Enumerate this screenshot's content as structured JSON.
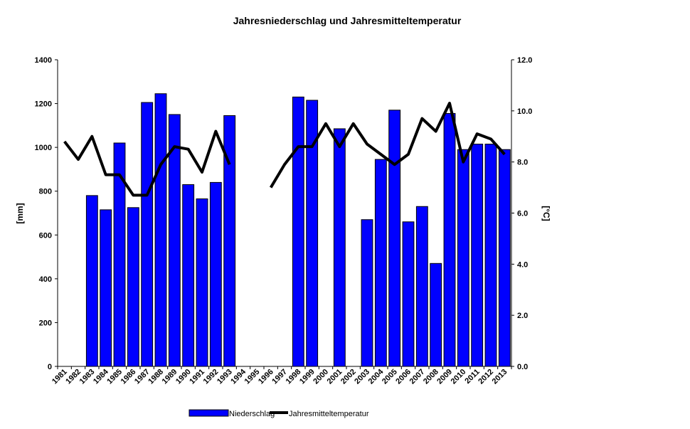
{
  "colors": {
    "bar": "#0000ff",
    "bar_stroke": "#000000",
    "line": "#000000"
  },
  "chart_data": {
    "type": "bar",
    "title": "Jahresniederschlag und Jahresmitteltemperatur",
    "ylabel": "[mm]",
    "y2label": "[°C]",
    "ylim": [
      0,
      1400
    ],
    "y2lim": [
      0,
      12
    ],
    "yticks": [
      "0",
      "200",
      "400",
      "600",
      "800",
      "1000",
      "1200",
      "1400"
    ],
    "y2ticks": [
      "0.0",
      "2.0",
      "4.0",
      "6.0",
      "8.0",
      "10.0",
      "12.0"
    ],
    "grid": false,
    "legend_position": "bottom",
    "categories": [
      "1981",
      "1982",
      "1983",
      "1984",
      "1985",
      "1986",
      "1987",
      "1988",
      "1989",
      "1990",
      "1991",
      "1992",
      "1993",
      "1994",
      "1995",
      "1996",
      "1997",
      "1998",
      "1999",
      "2000",
      "2001",
      "2002",
      "2003",
      "2004",
      "2005",
      "2006",
      "2007",
      "2008",
      "2009",
      "2010",
      "2011",
      "2012",
      "2013"
    ],
    "series": [
      {
        "name": "Niederschlag",
        "type": "bar",
        "axis": "left",
        "values": [
          null,
          null,
          780,
          715,
          1020,
          725,
          1205,
          1245,
          1150,
          830,
          765,
          840,
          1145,
          null,
          null,
          null,
          null,
          1230,
          1215,
          null,
          1085,
          null,
          670,
          945,
          1170,
          660,
          730,
          470,
          1155,
          990,
          1015,
          1015,
          990
        ]
      },
      {
        "name": "Jahresmitteltemperatur",
        "type": "line",
        "axis": "right",
        "values": [
          8.8,
          8.1,
          9.0,
          7.5,
          7.5,
          6.7,
          6.7,
          7.9,
          8.6,
          8.5,
          7.6,
          9.2,
          7.9,
          null,
          null,
          7.0,
          7.9,
          8.6,
          8.6,
          9.5,
          8.6,
          9.5,
          8.7,
          8.3,
          7.9,
          8.3,
          9.7,
          9.2,
          10.3,
          8.0,
          9.1,
          8.9,
          8.3
        ]
      }
    ]
  }
}
